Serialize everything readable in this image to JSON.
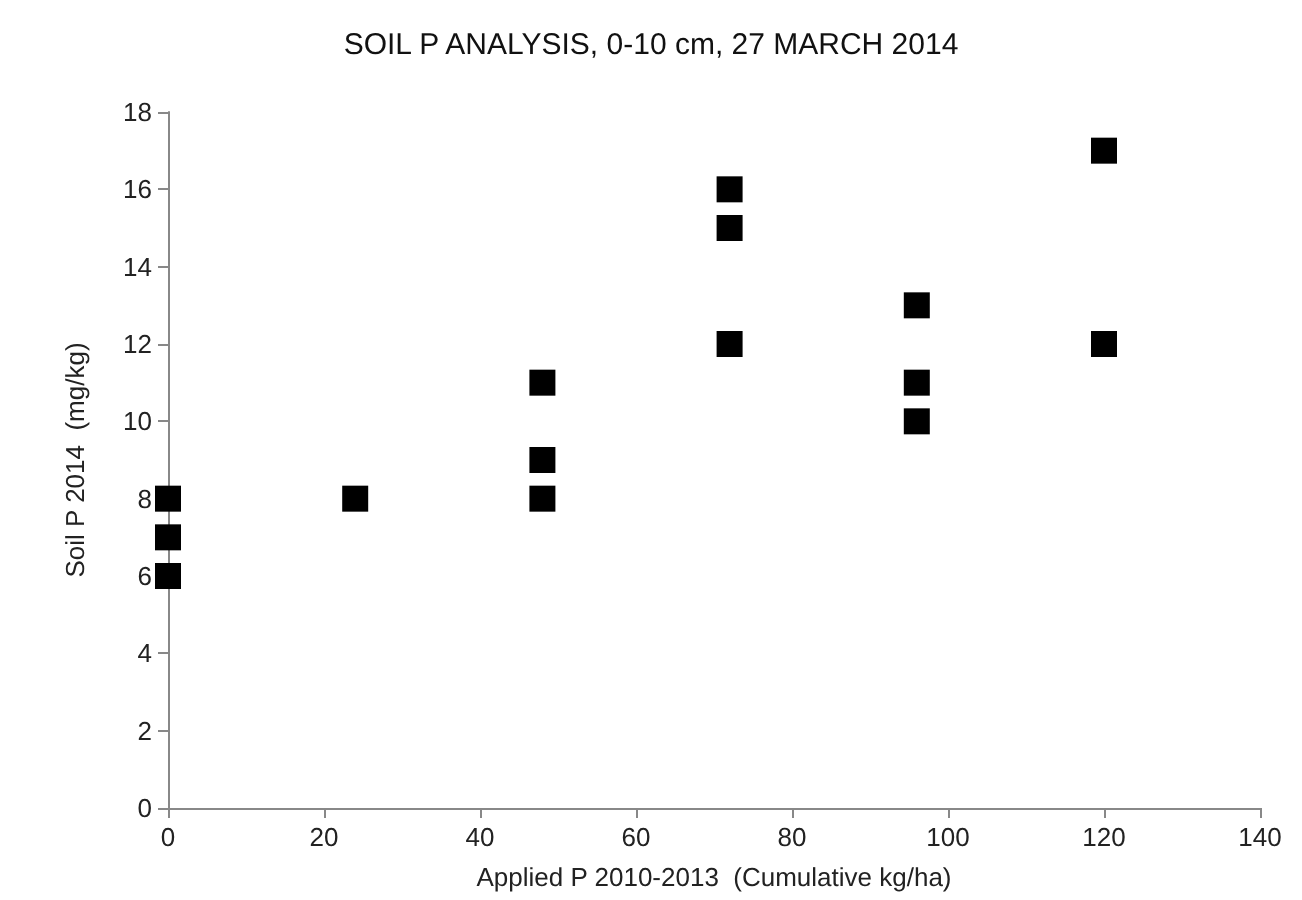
{
  "chart_data": {
    "type": "scatter",
    "title": "SOIL P ANALYSIS, 0-10 cm, 27 MARCH 2014",
    "xlabel": "Applied P 2010-2013  (Cumulative kg/ha)",
    "ylabel": "Soil P 2014  (mg/kg)",
    "x": [
      0,
      0,
      0,
      24,
      48,
      48,
      48,
      72,
      72,
      72,
      96,
      96,
      96,
      120,
      120
    ],
    "values": [
      8,
      7,
      6,
      8,
      11,
      9,
      8,
      16,
      15,
      12,
      13,
      11,
      10,
      17,
      12
    ],
    "color": "#000000",
    "marker": "square",
    "xlim": [
      0,
      140
    ],
    "xticks": [
      0,
      20,
      40,
      60,
      80,
      100,
      120,
      140
    ],
    "ylim": [
      0,
      18
    ],
    "yticks": [
      0,
      2,
      4,
      6,
      8,
      10,
      12,
      14,
      16,
      18
    ],
    "grid": false
  }
}
